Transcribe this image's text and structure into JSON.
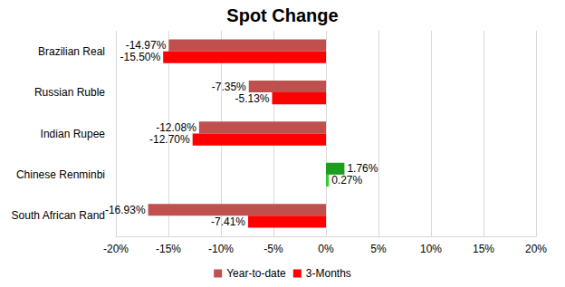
{
  "chart_data": {
    "type": "bar",
    "title": "Spot Change",
    "orientation": "horizontal",
    "grid": true,
    "legend": "bottom",
    "data_labels": true,
    "categories": [
      "Brazilian Real",
      "Russian Ruble",
      "Indian Rupee",
      "Chinese Renminbi",
      "South African Rand"
    ],
    "series": [
      {
        "name": "Year-to-date",
        "color": "#C0504D",
        "colors": [
          "#C0504D",
          "#C0504D",
          "#C0504D",
          "#1E9E1E",
          "#C0504D"
        ],
        "values": [
          -14.97,
          -7.35,
          -12.08,
          1.76,
          -16.93
        ],
        "value_labels": [
          "-14.97%",
          "-7.35%",
          "-12.08%",
          "1.76%",
          "-16.93%"
        ]
      },
      {
        "name": "3-Months",
        "color": "#FF0000",
        "colors": [
          "#FF0000",
          "#FF0000",
          "#FF0000",
          "#33CC33",
          "#FF0000"
        ],
        "values": [
          -15.5,
          -5.13,
          -12.7,
          0.27,
          -7.41
        ],
        "value_labels": [
          "-15.50%",
          "-5.13%",
          "-12.70%",
          "0.27%",
          "-7.41%"
        ]
      }
    ],
    "xlim": [
      -20,
      20
    ],
    "xticks": [
      {
        "value": -20,
        "label": "-20%"
      },
      {
        "value": -15,
        "label": "-15%"
      },
      {
        "value": -10,
        "label": "-10%"
      },
      {
        "value": -5,
        "label": "-5%"
      },
      {
        "value": 0,
        "label": "0%"
      },
      {
        "value": 5,
        "label": "5%"
      },
      {
        "value": 10,
        "label": "10%"
      },
      {
        "value": 15,
        "label": "15%"
      },
      {
        "value": 20,
        "label": "20%"
      }
    ]
  }
}
